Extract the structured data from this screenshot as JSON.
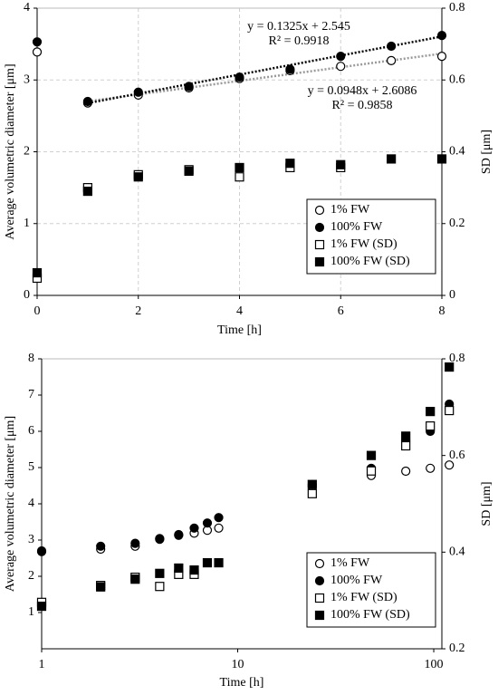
{
  "chart_data": [
    {
      "type": "scatter",
      "x_label": "Time [h]",
      "y_label": "Average volumetric diameter [μm]",
      "y2_label": "SD [μm]",
      "x": [
        0,
        1,
        2,
        3,
        4,
        5,
        6,
        7,
        8
      ],
      "xlim": [
        0,
        8
      ],
      "xticks": [
        0,
        2,
        4,
        6,
        8
      ],
      "ylim": [
        0,
        4
      ],
      "yticks": [
        0,
        1,
        2,
        3,
        4
      ],
      "y2lim": [
        0,
        0.8
      ],
      "y2ticks": [
        0,
        0.2,
        0.4,
        0.6,
        0.8
      ],
      "grid": true,
      "log_x": false,
      "legend": "lower right",
      "series": [
        {
          "name": "1% FW",
          "marker": "circle",
          "color": "#000000",
          "fill": "#ffffff",
          "values": [
            3.39,
            2.68,
            2.79,
            2.89,
            3.02,
            3.13,
            3.19,
            3.27,
            3.33
          ],
          "trendline": {
            "slope": 0.0948,
            "intercept": 2.6086,
            "color": "#999999",
            "equation": "y = 0.0948x + 2.6086",
            "r2": "R² = 0.9858"
          }
        },
        {
          "name": "100% FW",
          "marker": "circle",
          "color": "#000000",
          "fill": "#000000",
          "values": [
            3.53,
            2.7,
            2.83,
            2.91,
            3.04,
            3.15,
            3.33,
            3.47,
            3.62
          ],
          "trendline": {
            "slope": 0.1325,
            "intercept": 2.545,
            "color": "#000000",
            "equation": "y = 0.1325x + 2.545",
            "r2": "R² = 0.9918"
          }
        },
        {
          "name": "1% FW (SD)",
          "marker": "square",
          "color": "#000000",
          "fill": "#ffffff",
          "axis": "y2",
          "values": [
            0.048,
            0.3,
            0.336,
            0.35,
            0.33,
            0.356,
            0.356,
            null,
            null
          ]
        },
        {
          "name": "100% FW (SD)",
          "marker": "square",
          "color": "#000000",
          "fill": "#000000",
          "axis": "y2",
          "values": [
            0.063,
            0.29,
            0.33,
            0.346,
            0.356,
            0.368,
            0.364,
            0.38,
            0.38
          ]
        }
      ]
    },
    {
      "type": "scatter",
      "x_label": "Time [h]",
      "y_label": "Average volumetric diameter [μm]",
      "y2_label": "SD [μm]",
      "x": [
        1,
        2,
        3,
        4,
        5,
        6,
        7,
        8,
        24,
        48,
        72,
        96,
        120
      ],
      "xlim": [
        1,
        110
      ],
      "xticks": [
        1,
        10,
        100
      ],
      "ylim": [
        0,
        8
      ],
      "yticks": [
        1,
        2,
        3,
        4,
        5,
        6,
        7,
        8
      ],
      "y2lim": [
        0.2,
        0.8
      ],
      "y2ticks": [
        0.2,
        0.4,
        0.6,
        0.8
      ],
      "grid": false,
      "log_x": true,
      "legend": "lower right",
      "series": [
        {
          "name": "1% FW",
          "marker": "circle",
          "color": "#000000",
          "fill": "#ffffff",
          "values": [
            2.68,
            2.75,
            2.83,
            3.02,
            3.13,
            3.19,
            3.27,
            3.33,
            4.48,
            4.78,
            4.9,
            4.98,
            5.07
          ]
        },
        {
          "name": "100% FW",
          "marker": "circle",
          "color": "#000000",
          "fill": "#000000",
          "values": [
            2.7,
            2.83,
            2.91,
            3.04,
            3.15,
            3.33,
            3.47,
            3.62,
            4.53,
            4.98,
            5.73,
            6.0,
            6.75
          ]
        },
        {
          "name": "1% FW (SD)",
          "marker": "square",
          "color": "#000000",
          "fill": "#ffffff",
          "axis": "y2",
          "values": [
            0.296,
            0.331,
            0.348,
            0.329,
            0.354,
            0.354,
            null,
            null,
            0.521,
            0.568,
            0.62,
            0.661,
            0.693
          ]
        },
        {
          "name": "100% FW (SD)",
          "marker": "square",
          "color": "#000000",
          "fill": "#000000",
          "axis": "y2",
          "values": [
            0.288,
            0.328,
            0.344,
            0.356,
            0.367,
            0.363,
            0.378,
            0.378,
            0.54,
            0.6,
            0.64,
            0.691,
            0.783
          ]
        }
      ]
    }
  ]
}
